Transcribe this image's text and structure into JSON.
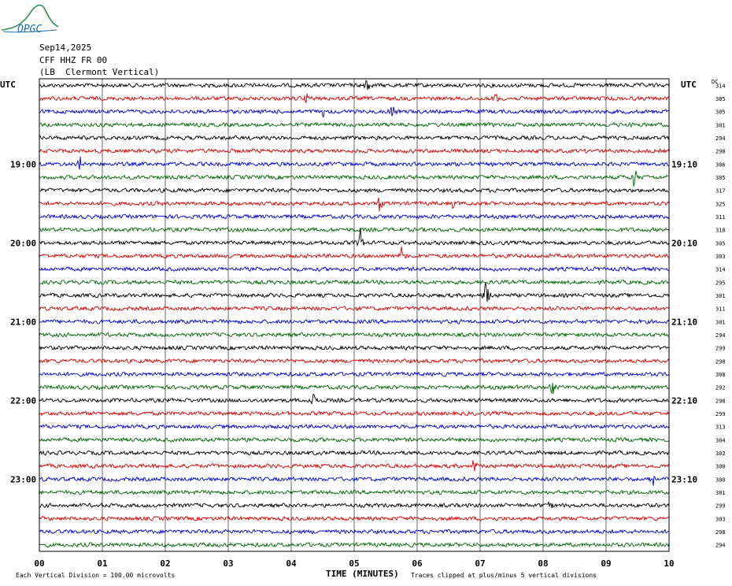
{
  "header": {
    "date": "Sep14,2025",
    "station": "CFF HHZ FR 00",
    "location": "(LB  Clermont Vertical)"
  },
  "logo_text": "OPGC",
  "labels": {
    "utc_left": "UTC",
    "utc_right": "UTC",
    "dc": "DC"
  },
  "footer": {
    "division": "Each Vertical Division =  100.00 microvolts",
    "xlabel": "TIME (MINUTES)",
    "clip_note": "Traces clipped at plus/minus 5 vertical divisions"
  },
  "colors": {
    "series": [
      "#000000",
      "#dd0000",
      "#0000dd",
      "#006600"
    ]
  },
  "chart_data": {
    "type": "line",
    "xlabel": "TIME (MINUTES)",
    "xlim": [
      0,
      10
    ],
    "x_ticks": [
      "00",
      "01",
      "02",
      "03",
      "04",
      "05",
      "06",
      "07",
      "08",
      "09",
      "10"
    ],
    "left_hour_labels": [
      {
        "row": 6,
        "label": "19:00"
      },
      {
        "row": 12,
        "label": "20:00"
      },
      {
        "row": 18,
        "label": "21:00"
      },
      {
        "row": 24,
        "label": "22:00"
      },
      {
        "row": 30,
        "label": "23:00"
      }
    ],
    "right_hour_labels": [
      {
        "row": 6,
        "label": "19:10"
      },
      {
        "row": 12,
        "label": "20:10"
      },
      {
        "row": 18,
        "label": "21:10"
      },
      {
        "row": 24,
        "label": "22:10"
      },
      {
        "row": 30,
        "label": "23:10"
      }
    ],
    "dc_offsets": [
      314,
      305,
      305,
      301,
      294,
      298,
      306,
      305,
      317,
      325,
      311,
      318,
      305,
      303,
      314,
      295,
      301,
      311,
      301,
      294,
      299,
      298,
      308,
      292,
      298,
      299,
      313,
      304,
      302,
      300,
      300,
      301,
      299,
      303,
      298,
      294
    ],
    "events": [
      {
        "row": 0,
        "minute": 5.2,
        "amp": 1.0
      },
      {
        "row": 1,
        "minute": 4.25,
        "amp": 1.0
      },
      {
        "row": 1,
        "minute": 7.25,
        "amp": 0.8
      },
      {
        "row": 2,
        "minute": 4.5,
        "amp": 0.8
      },
      {
        "row": 2,
        "minute": 5.6,
        "amp": 0.9
      },
      {
        "row": 6,
        "minute": 0.65,
        "amp": 0.9
      },
      {
        "row": 7,
        "minute": 9.45,
        "amp": 1.4
      },
      {
        "row": 9,
        "minute": 5.4,
        "amp": 0.9
      },
      {
        "row": 9,
        "minute": 6.55,
        "amp": 0.7
      },
      {
        "row": 12,
        "minute": 5.1,
        "amp": 1.2
      },
      {
        "row": 13,
        "minute": 5.75,
        "amp": 1.3
      },
      {
        "row": 16,
        "minute": 7.1,
        "amp": 2.2
      },
      {
        "row": 23,
        "minute": 8.15,
        "amp": 1.0
      },
      {
        "row": 24,
        "minute": 4.35,
        "amp": 1.3
      },
      {
        "row": 29,
        "minute": 6.9,
        "amp": 1.1
      },
      {
        "row": 30,
        "minute": 9.75,
        "amp": 0.7
      },
      {
        "row": 32,
        "minute": 8.1,
        "amp": 0.9
      }
    ]
  }
}
